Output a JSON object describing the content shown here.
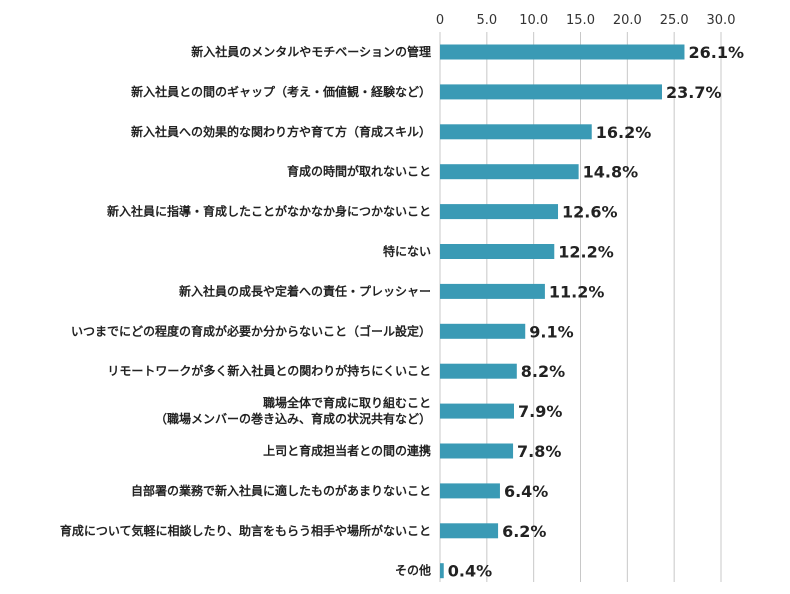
{
  "chart_data": {
    "type": "bar",
    "orientation": "horizontal",
    "categories": [
      [
        "新入社員のメンタルやモチベーションの管理"
      ],
      [
        "新入社員との間のギャップ（考え・価値観・経験など）"
      ],
      [
        "新入社員への効果的な関わり方や育て方（育成スキル）"
      ],
      [
        "育成の時間が取れないこと"
      ],
      [
        "新入社員に指導・育成したことがなかなか身につかないこと"
      ],
      [
        "特にない"
      ],
      [
        "新入社員の成長や定着への責任・プレッシャー"
      ],
      [
        "いつまでにどの程度の育成が必要か分からないこと（ゴール設定）"
      ],
      [
        "リモートワークが多く新入社員との関わりが持ちにくいこと"
      ],
      [
        "職場全体で育成に取り組むこと",
        "（職場メンバーの巻き込み、育成の状況共有など）"
      ],
      [
        "上司と育成担当者との間の連携"
      ],
      [
        "自部署の業務で新入社員に適したものがあまりないこと"
      ],
      [
        "育成について気軽に相談したり、助言をもらう相手や場所がないこと"
      ],
      [
        "その他"
      ]
    ],
    "values": [
      26.1,
      23.7,
      16.2,
      14.8,
      12.6,
      12.2,
      11.2,
      9.1,
      8.2,
      7.9,
      7.8,
      6.4,
      6.2,
      0.4
    ],
    "value_labels": [
      "26.1%",
      "23.7%",
      "16.2%",
      "14.8%",
      "12.6%",
      "12.2%",
      "11.2%",
      "9.1%",
      "8.2%",
      "7.9%",
      "7.8%",
      "6.4%",
      "6.2%",
      "0.4%"
    ],
    "xticks": [
      "0",
      "5.0",
      "10.0",
      "15.0",
      "20.0",
      "25.0",
      "30.0"
    ],
    "xlim": [
      0,
      30
    ],
    "xaxis_position": "top",
    "grid": true,
    "bar_color": "#3a9ab5",
    "title": "",
    "xlabel": "",
    "ylabel": ""
  }
}
